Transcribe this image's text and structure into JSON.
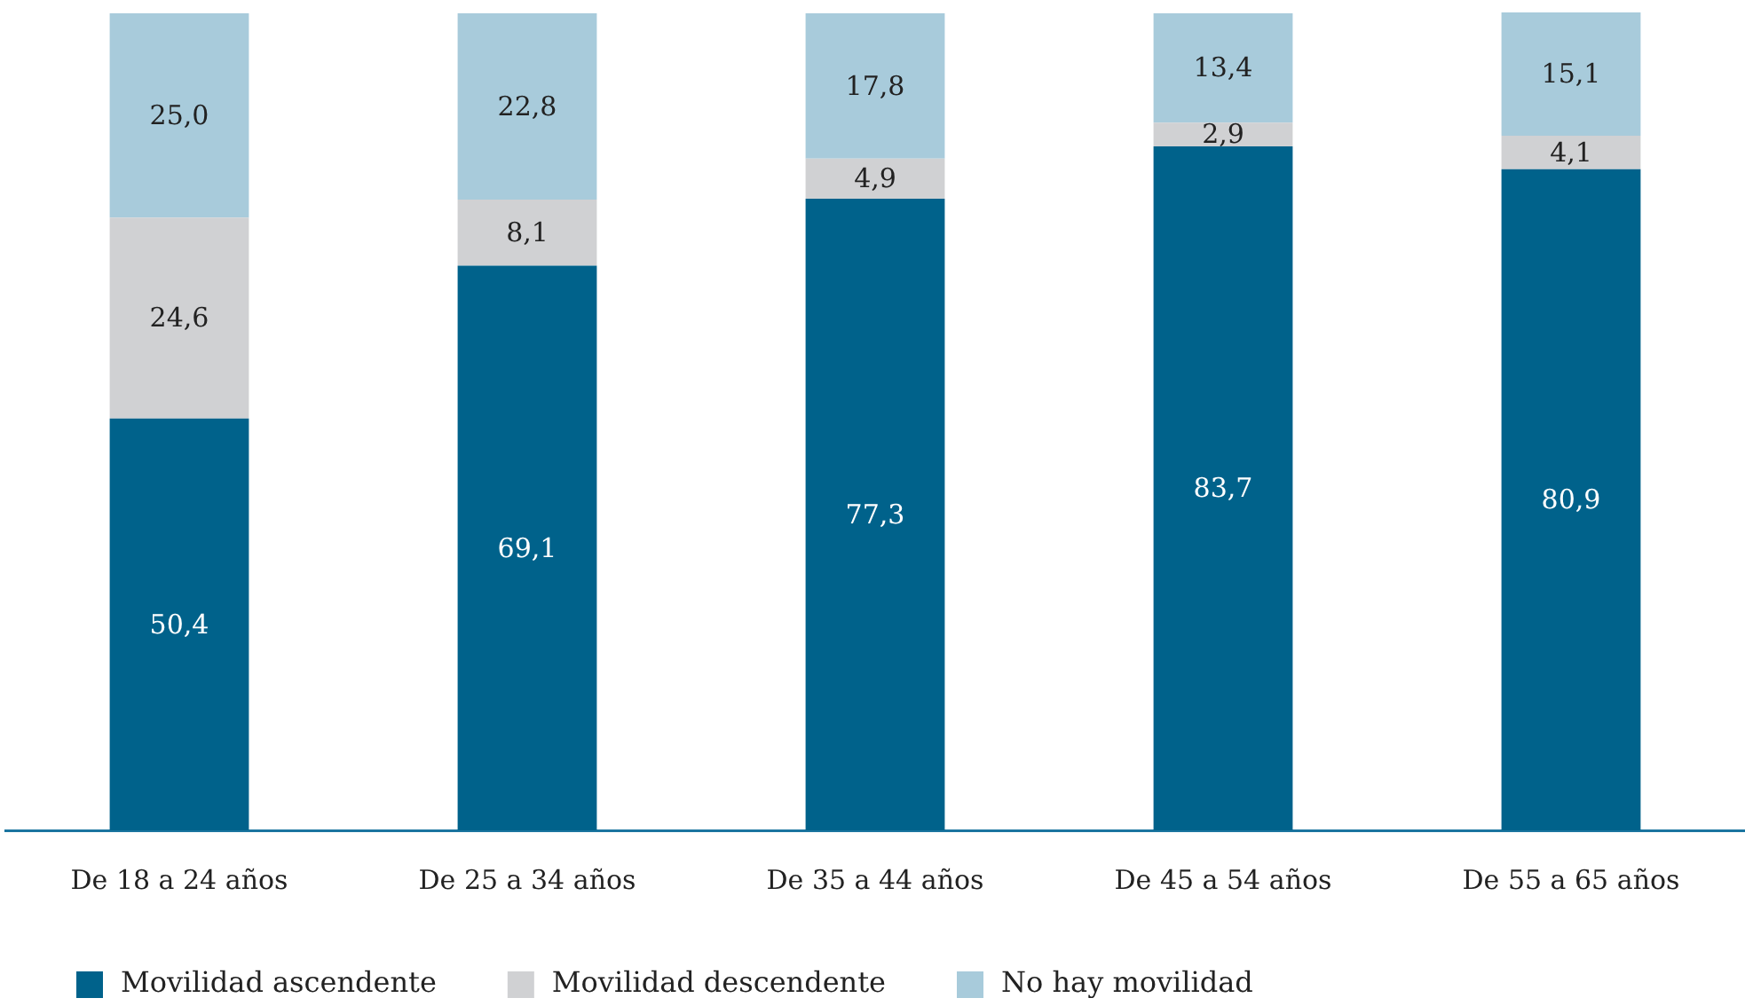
{
  "chart_data": {
    "type": "bar",
    "stacked": true,
    "categories": [
      "De 18 a 24 años",
      "De 25 a 34 años",
      "De 35 a 44 años",
      "De 45 a 54 años",
      "De 55 a 65 años"
    ],
    "series": [
      {
        "name": "Movilidad ascendente",
        "color": "#00628b",
        "values": [
          50.4,
          69.1,
          77.3,
          83.7,
          80.9
        ],
        "value_labels": [
          "50,4",
          "69,1",
          "77,3",
          "83,7",
          "80,9"
        ]
      },
      {
        "name": "Movilidad descendente",
        "color": "#d0d1d3",
        "values": [
          24.6,
          8.1,
          4.9,
          2.9,
          4.1
        ],
        "value_labels": [
          "24,6",
          "8,1",
          "4,9",
          "2,9",
          "4,1"
        ]
      },
      {
        "name": "No hay movilidad",
        "color": "#a8cbdb",
        "values": [
          25.0,
          22.8,
          17.8,
          13.4,
          15.1
        ],
        "value_labels": [
          "25,0",
          "22,8",
          "17,8",
          "13,4",
          "15,1"
        ]
      }
    ],
    "legend": "bottom left"
  }
}
